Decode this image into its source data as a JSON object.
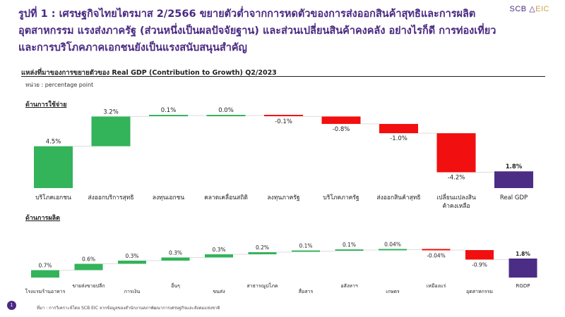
{
  "header": {
    "headline": "รูปที่ 1 : เศรษฐกิจไทยไตรมาส 2/2566 ขยายตัวต่ำจากการหดตัวของการส่งออกสินค้าสุทธิและการผลิตอุตสาหกรรม แรงส่งภาครัฐ (ส่วนหนึ่งเป็นผลปัจจัยฐาน) และส่วนเปลี่ยนสินค้าคงคลัง อย่างไรก็ดี การท่องเที่ยวและการบริโภคภาคเอกชนยังเป็นแรงสนับสนุนสำคัญ",
    "logo_left": "SCB",
    "logo_right": "EIC"
  },
  "subtitle": "แหล่งที่มาของการขยายตัวของ Real GDP (Contribution to Growth) Q2/2023",
  "unit": "หน่วย : percentage point",
  "sections": {
    "expenditure": "ด้านการใช้จ่าย",
    "production": "ด้านการผลิต"
  },
  "footer": {
    "source": "ที่มา : การวิเคราะห์โดย SCB EIC จากข้อมูลของสำนักงานสภาพัฒนาการเศรษฐกิจและสังคมแห่งชาติ",
    "page": "1"
  },
  "colors": {
    "positive": "#33b35a",
    "negative": "#f20f0f",
    "total": "#4b2d86",
    "headline": "#4a2a82"
  },
  "chart_data": [
    {
      "type": "bar",
      "subtype": "waterfall",
      "categories": [
        "บริโภคเอกชน",
        "ส่งออกบริการสุทธิ",
        "ลงทุนเอกชน",
        "คลาดเคลื่อนสถิติ",
        "ลงทุนภาครัฐ",
        "บริโภคภาครัฐ",
        "ส่งออกสินค้าสุทธิ",
        "เปลี่ยนแปลงสินค้าคงเหลือ",
        "Real GDP"
      ],
      "values": [
        4.5,
        3.2,
        0.1,
        0.0,
        -0.1,
        -0.8,
        -1.0,
        -4.2,
        1.8
      ],
      "labels": [
        "4.5%",
        "3.2%",
        "0.1%",
        "0.0%",
        "-0.1%",
        "-0.8%",
        "-1.0%",
        "-4.2%",
        "1.8%"
      ],
      "total_index": 8
    },
    {
      "type": "bar",
      "subtype": "waterfall",
      "categories": [
        "โรงแรมร้านอาหาร",
        "ขายส่งขายปลีก",
        "การเงิน",
        "อื่นๆ",
        "ขนส่ง",
        "สาธารณูปโภค",
        "สื่อสาร",
        "อสังหาฯ",
        "เกษตร",
        "เหมืองแร่",
        "อุตสาหกรรม",
        "RGDP"
      ],
      "values": [
        0.7,
        0.6,
        0.3,
        0.3,
        0.3,
        0.2,
        0.1,
        0.1,
        0.04,
        -0.04,
        -0.9,
        1.8
      ],
      "labels": [
        "0.7%",
        "0.6%",
        "0.3%",
        "0.3%",
        "0.3%",
        "0.2%",
        "0.1%",
        "0.1%",
        "0.04%",
        "-0.04%",
        "-0.9%",
        "1.8%"
      ],
      "total_index": 11
    }
  ]
}
